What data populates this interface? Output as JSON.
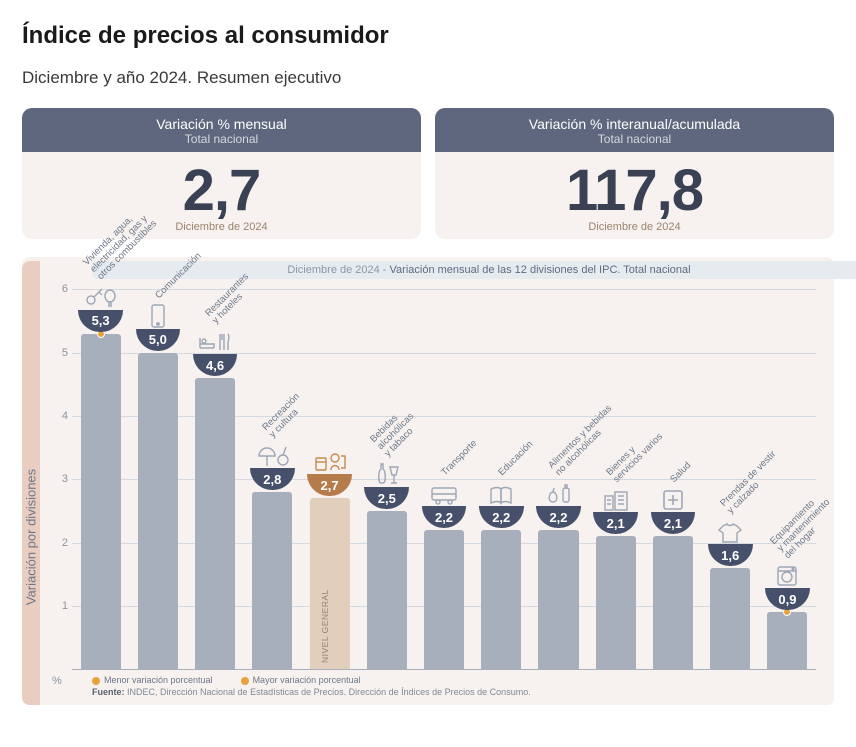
{
  "title": "Índice de precios al consumidor",
  "subtitle": "Diciembre y año 2024. Resumen ejecutivo",
  "cards": [
    {
      "header_top": "Variación % mensual",
      "header_sub": "Total nacional",
      "value": "2,7",
      "date": "Diciembre de 2024"
    },
    {
      "header_top": "Variación % interanual/acumulada",
      "header_sub": "Total nacional",
      "value": "117,8",
      "date": "Diciembre de 2024"
    }
  ],
  "chart": {
    "caption_prefix": "Diciembre de 2024 - ",
    "caption_strong": "Variación mensual de las 12 divisiones del IPC. Total nacional",
    "y_band_label": "Variación por divisiones",
    "type": "bar",
    "ylim": [
      0,
      6
    ],
    "yticks": [
      1,
      2,
      3,
      4,
      5,
      6
    ],
    "pct_symbol": "%",
    "bar_color": "#a7aebc",
    "highlight_bar_color": "#e2cfbb",
    "highlight_value_bg": "#b67b4a",
    "value_bg": "#46506a",
    "grid_color": "#d4d9e0",
    "baseline_color": "#a8afba",
    "background_color": "#f7f2ef",
    "header_bg": "#5e677e",
    "dot_min_color": "#e9a23b",
    "dot_max_color": "#e9a23b",
    "icon_color": "#9ea6b6",
    "icon_highlight_color": "#c88a4f",
    "bar_width_pct": 70,
    "bars": [
      {
        "label_lines": [
          "Vivienda, agua,",
          "electricidad, gas y",
          "otros combustibles"
        ],
        "value": 5.3,
        "display": "5,3",
        "is_general": false,
        "is_max": true
      },
      {
        "label_lines": [
          "Comunicación"
        ],
        "value": 5.0,
        "display": "5,0",
        "is_general": false
      },
      {
        "label_lines": [
          "Restaurantes",
          "y hoteles"
        ],
        "value": 4.6,
        "display": "4,6",
        "is_general": false
      },
      {
        "label_lines": [
          "Recreación",
          "y cultura"
        ],
        "value": 2.8,
        "display": "2,8",
        "is_general": false
      },
      {
        "label_lines": [
          "NIVEL",
          "GENERAL"
        ],
        "value": 2.7,
        "display": "2,7",
        "is_general": true
      },
      {
        "label_lines": [
          "Bebidas",
          "alcohólicas",
          "y tabaco"
        ],
        "value": 2.5,
        "display": "2,5",
        "is_general": false
      },
      {
        "label_lines": [
          "Transporte"
        ],
        "value": 2.2,
        "display": "2,2",
        "is_general": false
      },
      {
        "label_lines": [
          "Educación"
        ],
        "value": 2.2,
        "display": "2,2",
        "is_general": false
      },
      {
        "label_lines": [
          "Alimentos y bebidas",
          "no alcohólicas"
        ],
        "value": 2.2,
        "display": "2,2",
        "is_general": false
      },
      {
        "label_lines": [
          "Bienes y",
          "servicios varios"
        ],
        "value": 2.1,
        "display": "2,1",
        "is_general": false
      },
      {
        "label_lines": [
          "Salud"
        ],
        "value": 2.1,
        "display": "2,1",
        "is_general": false
      },
      {
        "label_lines": [
          "Prendas de vestir",
          "y calzado"
        ],
        "value": 1.6,
        "display": "1,6",
        "is_general": false
      },
      {
        "label_lines": [
          "Equipamiento",
          "y mantenimiento",
          "del hogar"
        ],
        "value": 0.9,
        "display": "0,9",
        "is_general": false,
        "is_min": true
      }
    ],
    "footer": {
      "legend_min": "Menor variación porcentual",
      "legend_max": "Mayor variación porcentual",
      "source_label": "Fuente:",
      "source_text": "INDEC, Dirección Nacional de Estadísticas de Precios. Dirección de Índices de Precios de Consumo."
    }
  }
}
